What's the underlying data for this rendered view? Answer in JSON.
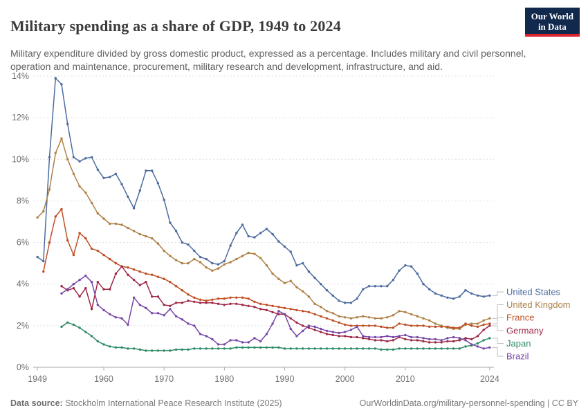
{
  "header": {
    "title": "Military spending as a share of GDP, 1949 to 2024",
    "subtitle": "Military expenditure divided by gross domestic product, expressed as a percentage. Includes military and civil personnel, operation and maintenance, procurement, military research and development, infrastructure, and aid.",
    "logo": {
      "line1": "Our World",
      "line2": "in Data"
    }
  },
  "footer": {
    "source_label": "Data source:",
    "source": "Stockholm International Peace Research Institute (2025)",
    "credit": "OurWorldinData.org/military-personnel-spending | CC BY"
  },
  "chart_data": {
    "type": "line",
    "title": "Military spending as a share of GDP, 1949 to 2024",
    "xlabel": "",
    "ylabel": "",
    "unit": "%",
    "xlim": [
      1949,
      2024
    ],
    "ylim": [
      0,
      14
    ],
    "grid": "dashed-horizontal",
    "legend_position": "right",
    "markers": true,
    "x_ticks": [
      1949,
      1960,
      1970,
      1980,
      1990,
      2000,
      2010,
      2024
    ],
    "y_tick_values": [
      0,
      2,
      4,
      6,
      8,
      10,
      12,
      14
    ],
    "y_tick_labels": [
      "0%",
      "2%",
      "4%",
      "6%",
      "8%",
      "10%",
      "12%",
      "14%"
    ],
    "series": [
      {
        "name": "United States",
        "color": "#4C6B9E",
        "start_year": 1949,
        "values": [
          5.3,
          5.1,
          10.1,
          13.9,
          13.6,
          11.7,
          10.1,
          9.9,
          10.05,
          10.1,
          9.5,
          9.1,
          9.15,
          9.3,
          8.8,
          8.2,
          7.65,
          8.5,
          9.45,
          9.45,
          8.85,
          8.05,
          6.95,
          6.55,
          6.0,
          5.9,
          5.6,
          5.3,
          5.2,
          5.0,
          4.95,
          5.1,
          5.85,
          6.45,
          6.85,
          6.3,
          6.25,
          6.45,
          6.65,
          6.4,
          6.05,
          5.8,
          5.55,
          4.9,
          5.0,
          4.6,
          4.3,
          4.0,
          3.7,
          3.45,
          3.2,
          3.1,
          3.1,
          3.3,
          3.75,
          3.9,
          3.9,
          3.9,
          3.9,
          4.2,
          4.65,
          4.9,
          4.85,
          4.5,
          4.0,
          3.75,
          3.55,
          3.45,
          3.35,
          3.3,
          3.4,
          3.7,
          3.55,
          3.45,
          3.4,
          3.45
        ]
      },
      {
        "name": "United Kingdom",
        "color": "#AE8046",
        "start_year": 1949,
        "values": [
          7.2,
          7.5,
          8.55,
          10.3,
          11.0,
          10.0,
          9.3,
          8.7,
          8.4,
          7.9,
          7.4,
          7.15,
          6.9,
          6.9,
          6.85,
          6.7,
          6.55,
          6.4,
          6.3,
          6.2,
          5.95,
          5.6,
          5.35,
          5.15,
          5.0,
          5.0,
          5.2,
          5.05,
          4.8,
          4.65,
          4.75,
          4.95,
          5.05,
          5.2,
          5.35,
          5.5,
          5.45,
          5.25,
          4.9,
          4.5,
          4.25,
          4.05,
          4.15,
          3.85,
          3.65,
          3.4,
          3.05,
          2.9,
          2.7,
          2.6,
          2.45,
          2.4,
          2.35,
          2.4,
          2.45,
          2.4,
          2.35,
          2.35,
          2.4,
          2.5,
          2.7,
          2.65,
          2.55,
          2.45,
          2.35,
          2.25,
          2.1,
          2.0,
          1.9,
          1.85,
          1.85,
          2.05,
          2.1,
          2.1,
          2.25,
          2.35
        ]
      },
      {
        "name": "France",
        "color": "#BF4E24",
        "start_year": 1950,
        "values": [
          4.6,
          6.0,
          7.25,
          7.6,
          6.1,
          5.4,
          6.45,
          6.2,
          5.7,
          5.6,
          5.4,
          5.2,
          5.0,
          4.85,
          4.8,
          4.7,
          4.6,
          4.5,
          4.45,
          4.35,
          4.25,
          4.1,
          3.9,
          3.7,
          3.5,
          3.35,
          3.25,
          3.2,
          3.25,
          3.3,
          3.3,
          3.35,
          3.35,
          3.35,
          3.3,
          3.15,
          3.05,
          3.0,
          2.95,
          2.9,
          2.85,
          2.8,
          2.75,
          2.7,
          2.65,
          2.55,
          2.45,
          2.35,
          2.25,
          2.15,
          2.05,
          2.0,
          2.0,
          2.0,
          2.0,
          2.0,
          1.95,
          1.9,
          1.9,
          2.1,
          2.05,
          2.0,
          2.0,
          2.0,
          1.95,
          1.95,
          1.95,
          1.95,
          1.9,
          1.9,
          2.1,
          2.0,
          1.95,
          2.05,
          2.1
        ]
      },
      {
        "name": "Germany",
        "color": "#9E2846",
        "start_year": 1953,
        "values": [
          3.9,
          3.7,
          3.8,
          3.4,
          3.8,
          2.8,
          4.1,
          3.75,
          3.75,
          4.5,
          4.85,
          4.45,
          4.2,
          3.95,
          4.1,
          3.4,
          3.4,
          3.0,
          2.95,
          3.1,
          3.1,
          3.2,
          3.15,
          3.1,
          3.1,
          3.1,
          3.05,
          3.0,
          3.05,
          3.05,
          3.0,
          2.95,
          2.9,
          2.8,
          2.75,
          2.65,
          2.55,
          2.55,
          2.35,
          2.15,
          2.0,
          1.9,
          1.8,
          1.7,
          1.6,
          1.55,
          1.5,
          1.5,
          1.45,
          1.45,
          1.4,
          1.35,
          1.3,
          1.3,
          1.25,
          1.3,
          1.45,
          1.35,
          1.3,
          1.3,
          1.25,
          1.2,
          1.2,
          1.2,
          1.25,
          1.25,
          1.3,
          1.4,
          1.35,
          1.5,
          1.8,
          2.0
        ]
      },
      {
        "name": "Japan",
        "color": "#2D8A64",
        "start_year": 1953,
        "values": [
          1.95,
          2.15,
          2.05,
          1.9,
          1.7,
          1.5,
          1.25,
          1.1,
          1.0,
          0.95,
          0.95,
          0.9,
          0.9,
          0.85,
          0.8,
          0.8,
          0.8,
          0.8,
          0.8,
          0.85,
          0.85,
          0.85,
          0.9,
          0.9,
          0.9,
          0.9,
          0.9,
          0.9,
          0.9,
          0.95,
          0.95,
          0.95,
          0.95,
          0.95,
          0.95,
          0.95,
          0.95,
          0.9,
          0.9,
          0.9,
          0.9,
          0.9,
          0.9,
          0.9,
          0.9,
          0.9,
          0.9,
          0.9,
          0.9,
          0.9,
          0.9,
          0.9,
          0.9,
          0.85,
          0.85,
          0.85,
          0.9,
          0.9,
          0.9,
          0.9,
          0.9,
          0.9,
          0.9,
          0.9,
          0.9,
          0.9,
          0.9,
          1.0,
          1.05,
          1.15,
          1.3,
          1.4
        ]
      },
      {
        "name": "Brazil",
        "color": "#7846A8",
        "start_year": 1953,
        "values": [
          3.55,
          3.75,
          4.0,
          4.2,
          4.4,
          4.1,
          3.0,
          2.75,
          2.55,
          2.4,
          2.35,
          2.05,
          3.35,
          3.0,
          2.85,
          2.6,
          2.6,
          2.5,
          2.8,
          2.45,
          2.3,
          2.1,
          2.0,
          1.6,
          1.5,
          1.35,
          1.1,
          1.1,
          1.3,
          1.3,
          1.2,
          1.2,
          1.4,
          1.25,
          1.6,
          2.1,
          2.7,
          2.55,
          1.85,
          1.5,
          1.75,
          2.0,
          1.95,
          1.85,
          1.75,
          1.7,
          1.65,
          1.7,
          1.8,
          1.95,
          1.5,
          1.45,
          1.45,
          1.45,
          1.5,
          1.45,
          1.5,
          1.55,
          1.45,
          1.45,
          1.4,
          1.35,
          1.35,
          1.3,
          1.4,
          1.45,
          1.4,
          1.3,
          1.1,
          1.0,
          0.9,
          0.95
        ]
      }
    ]
  }
}
